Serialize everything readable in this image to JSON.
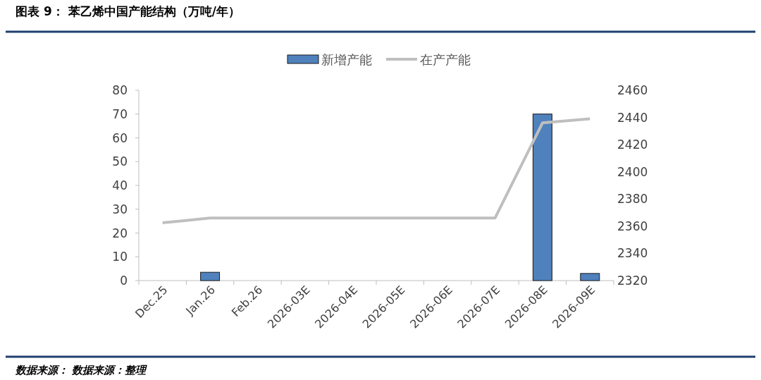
{
  "chart_data": {
    "type": "bar",
    "title": "图表 9：  苯乙烯中国产能结构（万吨/年）",
    "categories": [
      "Dec.25",
      "Jan.26",
      "Feb.26",
      "2026-03E",
      "2026-04E",
      "2026-05E",
      "2026-06E",
      "2026-07E",
      "2026-08E",
      "2026-09E"
    ],
    "series": [
      {
        "name": "新增产能",
        "color": "#4f81bd",
        "values": [
          0,
          3.5,
          0,
          0,
          0,
          0,
          0,
          0,
          70,
          3
        ]
      },
      {
        "name": "在产产能",
        "type": "line",
        "axis": "y2",
        "color": "#bfbfbf",
        "values": [
          2362.5,
          2366,
          2366,
          2366,
          2366,
          2366,
          2366,
          2366,
          2436,
          2439
        ]
      }
    ],
    "ylim": [
      0,
      80
    ],
    "yticks": [
      0,
      10,
      20,
      30,
      40,
      50,
      60,
      70,
      80
    ],
    "y2lim": [
      2320,
      2460
    ],
    "y2ticks": [
      2320,
      2340,
      2360,
      2380,
      2400,
      2420,
      2440,
      2460
    ],
    "legend": "top",
    "annotations": [
      "数据来源：  数据来源：整理"
    ]
  }
}
